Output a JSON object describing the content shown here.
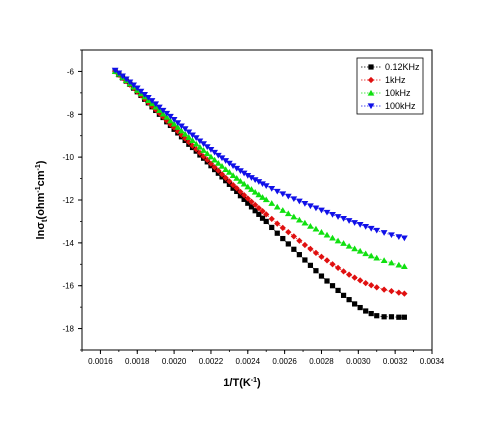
{
  "chart_data": {
    "type": "scatter",
    "xlabel_main": "1/T(K",
    "xlabel_sup": "-1",
    "xlabel_end": ")",
    "ylabel_html": "lnσ",
    "ylabel_sub": "t",
    "ylabel_unit_a": "(ohm",
    "ylabel_unit_a_sup": "-1",
    "ylabel_unit_b": "cm",
    "ylabel_unit_b_sup": "-1",
    "ylabel_unit_end": ")",
    "xlim": [
      0.0015,
      0.0034
    ],
    "ylim": [
      -19,
      -5
    ],
    "x_ticks": [
      0.0016,
      0.0018,
      0.002,
      0.0022,
      0.0024,
      0.0026,
      0.0028,
      0.003,
      0.0032,
      0.0034
    ],
    "x_tick_labels": [
      "0.0016",
      "0.0018",
      "0.0020",
      "0.0022",
      "0.0024",
      "0.0026",
      "0.0028",
      "0.0030",
      "0.0032",
      "0.0034"
    ],
    "y_ticks": [
      -6,
      -8,
      -10,
      -12,
      -14,
      -16,
      -18
    ],
    "y_tick_labels": [
      "-6",
      "-8",
      "-10",
      "-12",
      "-14",
      "-16",
      "-18"
    ],
    "grid": false,
    "legend_position": "top-right",
    "series": [
      {
        "name": "0.12KHz",
        "color": "#000000",
        "marker": "square",
        "x": [
          0.00168,
          0.0017,
          0.00172,
          0.00174,
          0.00176,
          0.00178,
          0.0018,
          0.00182,
          0.00184,
          0.00186,
          0.00188,
          0.0019,
          0.00192,
          0.00194,
          0.00196,
          0.00198,
          0.002,
          0.00202,
          0.00204,
          0.00206,
          0.00208,
          0.0021,
          0.00212,
          0.00214,
          0.00216,
          0.00218,
          0.0022,
          0.00222,
          0.00224,
          0.00226,
          0.00228,
          0.0023,
          0.00232,
          0.00234,
          0.00236,
          0.00238,
          0.0024,
          0.00242,
          0.00244,
          0.00246,
          0.00248,
          0.0025,
          0.00253,
          0.00256,
          0.00259,
          0.00262,
          0.00265,
          0.00268,
          0.00271,
          0.00274,
          0.00277,
          0.0028,
          0.00283,
          0.00286,
          0.00289,
          0.00292,
          0.00295,
          0.00298,
          0.00301,
          0.00304,
          0.00307,
          0.0031,
          0.00314,
          0.00318,
          0.00322,
          0.00325
        ],
        "y": [
          -6.0,
          -6.15,
          -6.3,
          -6.45,
          -6.6,
          -6.78,
          -6.95,
          -7.12,
          -7.3,
          -7.47,
          -7.65,
          -7.82,
          -8.0,
          -8.15,
          -8.35,
          -8.52,
          -8.7,
          -8.87,
          -9.05,
          -9.22,
          -9.4,
          -9.55,
          -9.72,
          -9.9,
          -10.05,
          -10.22,
          -10.4,
          -10.58,
          -10.75,
          -10.92,
          -11.1,
          -11.27,
          -11.45,
          -11.6,
          -11.8,
          -11.97,
          -12.15,
          -12.32,
          -12.5,
          -12.67,
          -12.85,
          -13.0,
          -13.28,
          -13.55,
          -13.8,
          -14.05,
          -14.3,
          -14.55,
          -14.8,
          -15.05,
          -15.3,
          -15.55,
          -15.78,
          -16.0,
          -16.22,
          -16.45,
          -16.65,
          -16.85,
          -17.02,
          -17.18,
          -17.3,
          -17.4,
          -17.45,
          -17.45,
          -17.47,
          -17.47
        ]
      },
      {
        "name": "1kHz",
        "color": "#e01010",
        "marker": "diamond",
        "x": [
          0.00168,
          0.0017,
          0.00172,
          0.00174,
          0.00176,
          0.00178,
          0.0018,
          0.00182,
          0.00184,
          0.00186,
          0.00188,
          0.0019,
          0.00192,
          0.00194,
          0.00196,
          0.00198,
          0.002,
          0.00202,
          0.00204,
          0.00206,
          0.00208,
          0.0021,
          0.00212,
          0.00214,
          0.00216,
          0.00218,
          0.0022,
          0.00222,
          0.00224,
          0.00226,
          0.00228,
          0.0023,
          0.00232,
          0.00234,
          0.00236,
          0.00238,
          0.0024,
          0.00242,
          0.00244,
          0.00246,
          0.00248,
          0.0025,
          0.00253,
          0.00256,
          0.00259,
          0.00262,
          0.00265,
          0.00268,
          0.00271,
          0.00274,
          0.00277,
          0.0028,
          0.00283,
          0.00286,
          0.00289,
          0.00292,
          0.00295,
          0.00298,
          0.00301,
          0.00304,
          0.00307,
          0.0031,
          0.00314,
          0.00318,
          0.00322,
          0.00325
        ],
        "y": [
          -6.0,
          -6.15,
          -6.3,
          -6.45,
          -6.62,
          -6.78,
          -6.95,
          -7.12,
          -7.28,
          -7.45,
          -7.62,
          -7.78,
          -7.95,
          -8.12,
          -8.3,
          -8.47,
          -8.62,
          -8.8,
          -8.97,
          -9.13,
          -9.3,
          -9.47,
          -9.63,
          -9.8,
          -9.97,
          -10.13,
          -10.3,
          -10.47,
          -10.63,
          -10.8,
          -10.97,
          -11.13,
          -11.3,
          -11.45,
          -11.62,
          -11.77,
          -11.93,
          -12.08,
          -12.23,
          -12.38,
          -12.52,
          -12.67,
          -12.88,
          -13.1,
          -13.3,
          -13.5,
          -13.7,
          -13.9,
          -14.1,
          -14.28,
          -14.47,
          -14.65,
          -14.82,
          -15.0,
          -15.17,
          -15.33,
          -15.48,
          -15.62,
          -15.75,
          -15.88,
          -15.98,
          -16.08,
          -16.18,
          -16.25,
          -16.32,
          -16.37
        ]
      },
      {
        "name": "10kHz",
        "color": "#10e010",
        "marker": "triangle-up",
        "x": [
          0.00168,
          0.0017,
          0.00172,
          0.00174,
          0.00176,
          0.00178,
          0.0018,
          0.00182,
          0.00184,
          0.00186,
          0.00188,
          0.0019,
          0.00192,
          0.00194,
          0.00196,
          0.00198,
          0.002,
          0.00202,
          0.00204,
          0.00206,
          0.00208,
          0.0021,
          0.00212,
          0.00214,
          0.00216,
          0.00218,
          0.0022,
          0.00222,
          0.00224,
          0.00226,
          0.00228,
          0.0023,
          0.00232,
          0.00234,
          0.00236,
          0.00238,
          0.0024,
          0.00242,
          0.00244,
          0.00246,
          0.00248,
          0.0025,
          0.00253,
          0.00256,
          0.00259,
          0.00262,
          0.00265,
          0.00268,
          0.00271,
          0.00274,
          0.00277,
          0.0028,
          0.00283,
          0.00286,
          0.00289,
          0.00292,
          0.00295,
          0.00298,
          0.00301,
          0.00304,
          0.00307,
          0.0031,
          0.00314,
          0.00318,
          0.00322,
          0.00325
        ],
        "y": [
          -6.0,
          -6.12,
          -6.27,
          -6.42,
          -6.57,
          -6.72,
          -6.88,
          -7.03,
          -7.18,
          -7.35,
          -7.5,
          -7.66,
          -7.82,
          -7.98,
          -8.13,
          -8.3,
          -8.45,
          -8.6,
          -8.77,
          -8.92,
          -9.07,
          -9.22,
          -9.38,
          -9.53,
          -9.68,
          -9.83,
          -9.98,
          -10.13,
          -10.28,
          -10.42,
          -10.57,
          -10.7,
          -10.85,
          -10.98,
          -11.12,
          -11.25,
          -11.38,
          -11.5,
          -11.63,
          -11.75,
          -11.87,
          -11.98,
          -12.15,
          -12.32,
          -12.48,
          -12.63,
          -12.78,
          -12.93,
          -13.07,
          -13.22,
          -13.35,
          -13.5,
          -13.63,
          -13.77,
          -13.9,
          -14.02,
          -14.15,
          -14.27,
          -14.38,
          -14.5,
          -14.6,
          -14.7,
          -14.82,
          -14.93,
          -15.03,
          -15.1
        ]
      },
      {
        "name": "100kHz",
        "color": "#1010e8",
        "marker": "triangle-down",
        "x": [
          0.00168,
          0.0017,
          0.00172,
          0.00174,
          0.00176,
          0.00178,
          0.0018,
          0.00182,
          0.00184,
          0.00186,
          0.00188,
          0.0019,
          0.00192,
          0.00194,
          0.00196,
          0.00198,
          0.002,
          0.00202,
          0.00204,
          0.00206,
          0.00208,
          0.0021,
          0.00212,
          0.00214,
          0.00216,
          0.00218,
          0.0022,
          0.00222,
          0.00224,
          0.00226,
          0.00228,
          0.0023,
          0.00232,
          0.00234,
          0.00236,
          0.00238,
          0.0024,
          0.00242,
          0.00244,
          0.00246,
          0.00248,
          0.0025,
          0.00253,
          0.00256,
          0.00259,
          0.00262,
          0.00265,
          0.00268,
          0.00271,
          0.00274,
          0.00277,
          0.0028,
          0.00283,
          0.00286,
          0.00289,
          0.00292,
          0.00295,
          0.00298,
          0.00301,
          0.00304,
          0.00307,
          0.0031,
          0.00314,
          0.00318,
          0.00322,
          0.00325
        ],
        "y": [
          -5.95,
          -6.08,
          -6.22,
          -6.36,
          -6.5,
          -6.64,
          -6.78,
          -6.93,
          -7.08,
          -7.22,
          -7.37,
          -7.52,
          -7.67,
          -7.82,
          -7.96,
          -8.1,
          -8.25,
          -8.4,
          -8.55,
          -8.68,
          -8.83,
          -8.97,
          -9.1,
          -9.25,
          -9.38,
          -9.52,
          -9.65,
          -9.78,
          -9.92,
          -10.04,
          -10.17,
          -10.29,
          -10.41,
          -10.53,
          -10.64,
          -10.75,
          -10.86,
          -10.96,
          -11.06,
          -11.15,
          -11.25,
          -11.34,
          -11.47,
          -11.6,
          -11.72,
          -11.83,
          -11.95,
          -12.06,
          -12.17,
          -12.28,
          -12.38,
          -12.48,
          -12.58,
          -12.68,
          -12.78,
          -12.87,
          -12.97,
          -13.06,
          -13.15,
          -13.24,
          -13.33,
          -13.42,
          -13.53,
          -13.63,
          -13.72,
          -13.78
        ]
      }
    ]
  }
}
